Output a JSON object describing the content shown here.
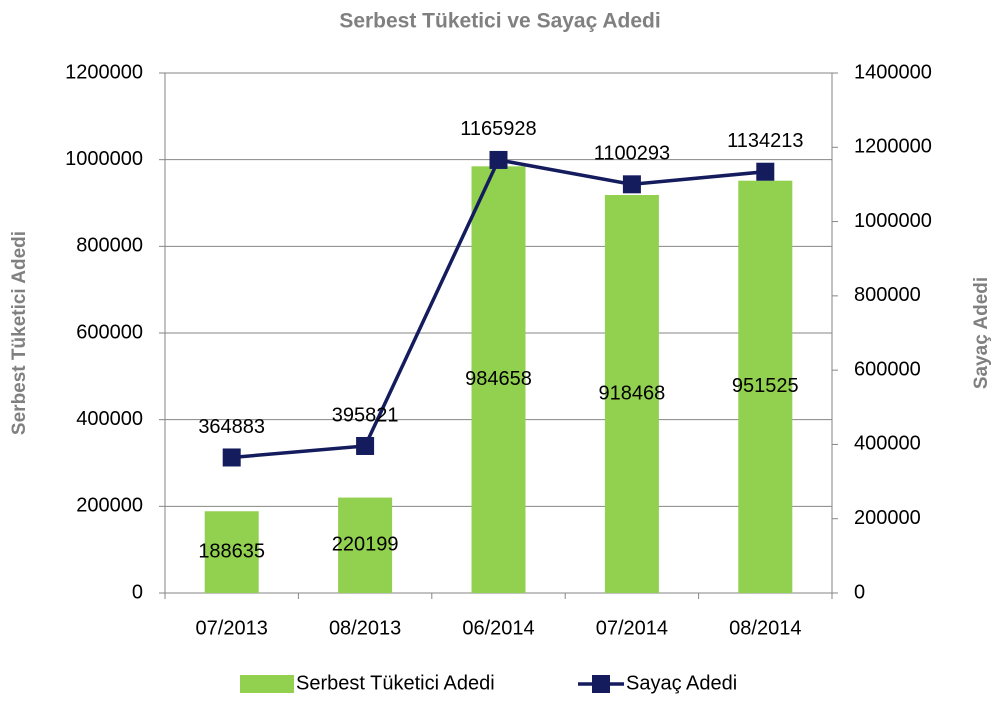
{
  "chart_data": {
    "type": "bar",
    "title": "Serbest Tüketici ve Sayaç Adedi",
    "categories": [
      "07/2013",
      "08/2013",
      "06/2014",
      "07/2014",
      "08/2014"
    ],
    "series": [
      {
        "name": "Serbest Tüketici Adedi",
        "type": "bar",
        "color": "#92d050",
        "values": [
          188635,
          220199,
          984658,
          918468,
          951525
        ]
      },
      {
        "name": "Sayaç Adedi",
        "type": "line",
        "axis": "y2",
        "color": "#141c5e",
        "values": [
          364883,
          395821,
          1165928,
          1100293,
          1134213
        ]
      }
    ],
    "ylabel": "Serbest Tüketici Adedi",
    "y2label": "Sayaç Adedi",
    "ylim": [
      0,
      1200000
    ],
    "yticks": [
      0,
      200000,
      400000,
      600000,
      800000,
      1000000,
      1200000
    ],
    "y2lim": [
      0,
      1400000
    ],
    "y2ticks": [
      0,
      200000,
      400000,
      600000,
      800000,
      1000000,
      1200000,
      1400000
    ],
    "grid": true,
    "legend": "bottom"
  }
}
